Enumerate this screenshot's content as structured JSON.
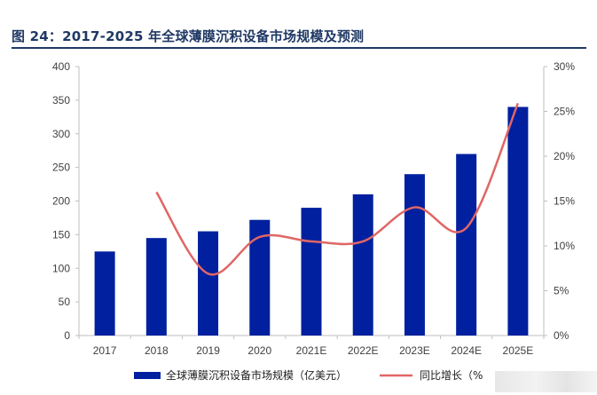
{
  "figure": {
    "title": "图 24：2017-2025 年全球薄膜沉积设备市场规模及预测"
  },
  "chart_data": {
    "type": "bar",
    "categories": [
      "2017",
      "2018",
      "2019",
      "2020",
      "2021E",
      "2022E",
      "2023E",
      "2024E",
      "2025E"
    ],
    "series": [
      {
        "name": "全球薄膜沉积设备市场规模（亿美元）",
        "type": "bar",
        "axis": "left",
        "color": "#00209f",
        "values": [
          125,
          145,
          155,
          172,
          190,
          210,
          240,
          270,
          340
        ]
      },
      {
        "name": "同比增长（%",
        "type": "line",
        "axis": "right",
        "color": "#e06666",
        "values": [
          null,
          16,
          6.9,
          11,
          10.5,
          10.5,
          14.3,
          12,
          25.9
        ]
      }
    ],
    "y_left": {
      "min": 0,
      "max": 400,
      "ticks": [
        "0",
        "50",
        "100",
        "150",
        "200",
        "250",
        "300",
        "350",
        "400"
      ]
    },
    "y_right": {
      "min": 0,
      "max": 30,
      "ticks": [
        "0%",
        "5%",
        "10%",
        "15%",
        "20%",
        "25%",
        "30%"
      ]
    },
    "grid": false,
    "legend_position": "bottom"
  }
}
